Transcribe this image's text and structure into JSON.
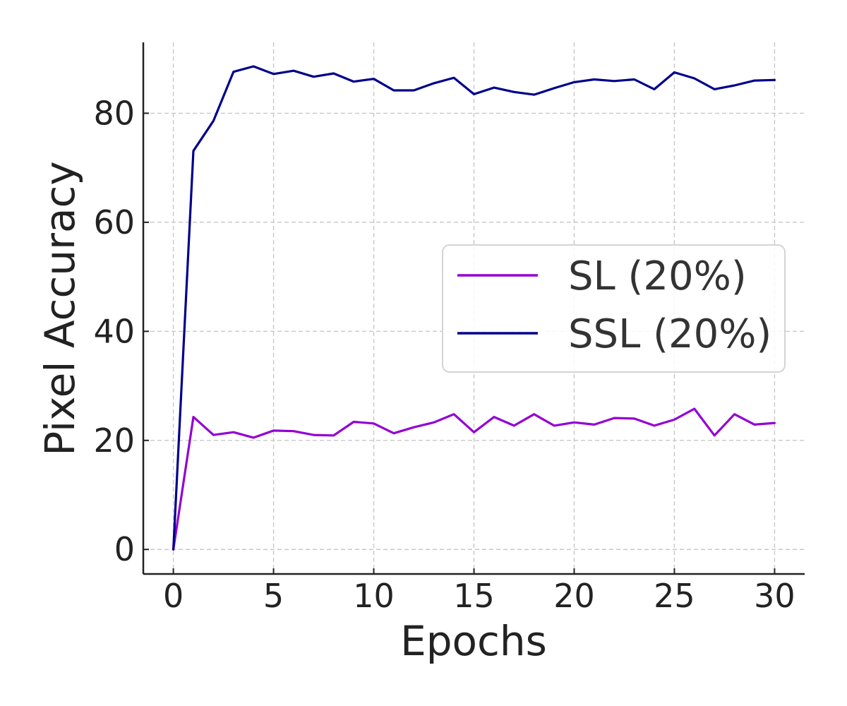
{
  "chart_data": {
    "type": "line",
    "title": "",
    "xlabel": "Epochs",
    "ylabel": "Pixel Accuracy",
    "xlim": [
      -1.5,
      31.5
    ],
    "ylim": [
      -4.5,
      93
    ],
    "x_ticks": [
      0,
      5,
      10,
      15,
      20,
      25,
      30
    ],
    "y_ticks": [
      0,
      20,
      40,
      60,
      80
    ],
    "grid": true,
    "legend_position": "center-right",
    "x": [
      0,
      1,
      2,
      3,
      4,
      5,
      6,
      7,
      8,
      9,
      10,
      11,
      12,
      13,
      14,
      15,
      16,
      17,
      18,
      19,
      20,
      21,
      22,
      23,
      24,
      25,
      26,
      27,
      28,
      29,
      30
    ],
    "series": [
      {
        "name": "SL (20%)",
        "color": "#9400D3",
        "values": [
          0,
          24.3,
          21.0,
          21.5,
          20.5,
          21.8,
          21.7,
          21.0,
          20.9,
          23.4,
          23.1,
          21.3,
          22.4,
          23.3,
          24.8,
          21.5,
          24.3,
          22.7,
          24.8,
          22.7,
          23.3,
          22.9,
          24.1,
          24.0,
          22.7,
          23.8,
          25.8,
          20.9,
          24.8,
          22.9,
          23.2
        ]
      },
      {
        "name": "SSL (20%)",
        "color": "#00008B",
        "values": [
          0,
          73.1,
          78.6,
          87.6,
          88.6,
          87.2,
          87.8,
          86.7,
          87.3,
          85.8,
          86.3,
          84.2,
          84.2,
          85.5,
          86.5,
          83.5,
          84.7,
          83.9,
          83.4,
          84.6,
          85.7,
          86.2,
          85.9,
          86.2,
          84.4,
          87.5,
          86.4,
          84.4,
          85.1,
          86.0,
          86.1
        ]
      }
    ]
  }
}
